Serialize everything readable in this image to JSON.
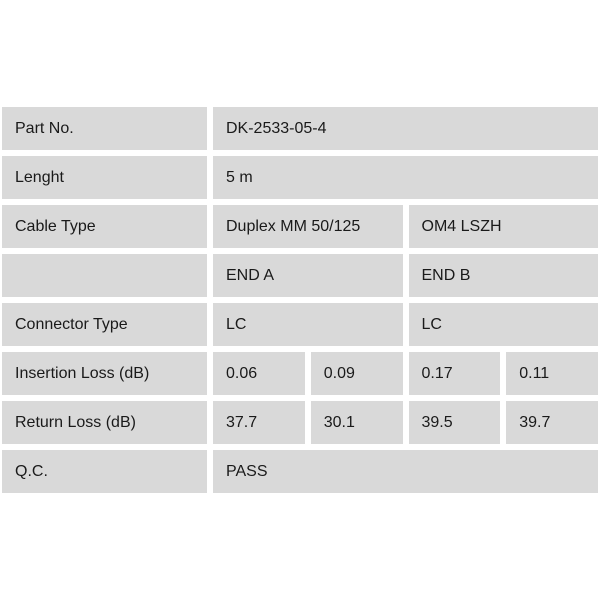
{
  "theme": {
    "page_bg": "#ffffff",
    "cell_bg": "#d9d9d9",
    "text_color": "#1a1a1a"
  },
  "table": {
    "rows": [
      {
        "label": "Part No.",
        "values": [
          "DK-2533-05-4"
        ]
      },
      {
        "label": "Lenght",
        "values": [
          "5 m"
        ]
      },
      {
        "label": "Cable Type",
        "values": [
          "Duplex MM 50/125",
          "OM4 LSZH"
        ]
      },
      {
        "label": "",
        "values": [
          "END A",
          "END B"
        ]
      },
      {
        "label": "Connector Type",
        "values": [
          "LC",
          "LC"
        ]
      },
      {
        "label": "Insertion Loss (dB)",
        "values": [
          "0.06",
          "0.09",
          "0.17",
          "0.11"
        ]
      },
      {
        "label": "Return Loss (dB)",
        "values": [
          "37.7",
          "30.1",
          "39.5",
          "39.7"
        ]
      },
      {
        "label": "Q.C.",
        "values": [
          "PASS"
        ]
      }
    ]
  }
}
